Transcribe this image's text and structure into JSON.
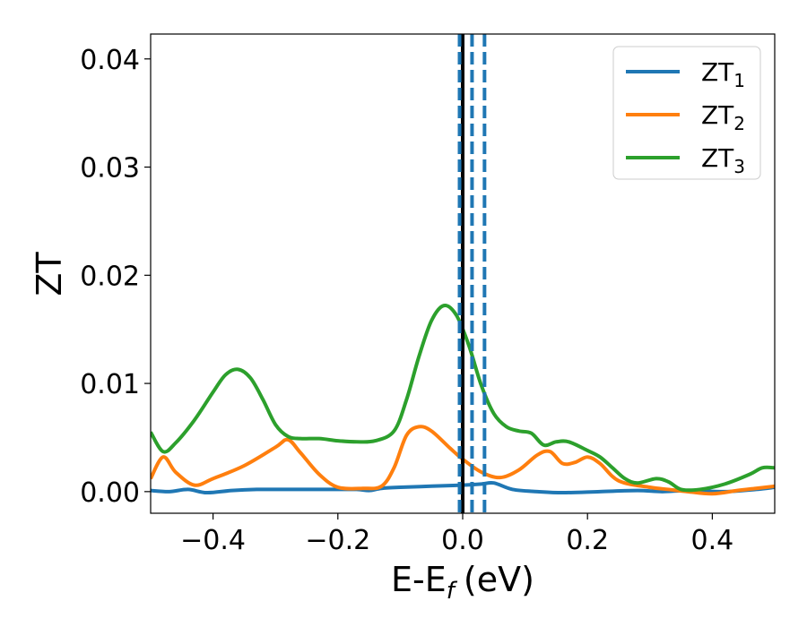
{
  "chart_data": {
    "type": "line",
    "xlabel": "E-E",
    "xlabel_sub": "f",
    "xlabel_unit": "(eV)",
    "ylabel": "ZT",
    "xlim": [
      -0.5,
      0.5
    ],
    "ylim": [
      -0.002,
      0.0423
    ],
    "xticks": [
      -0.4,
      -0.2,
      0.0,
      0.2,
      0.4
    ],
    "xtick_labels": [
      "−0.4",
      "−0.2",
      "0.0",
      "0.2",
      "0.4"
    ],
    "yticks": [
      0.0,
      0.01,
      0.02,
      0.03,
      0.04
    ],
    "ytick_labels": [
      "0.00",
      "0.01",
      "0.02",
      "0.03",
      "0.04"
    ],
    "grid": false,
    "legend_position": "top-right",
    "vertical_lines": [
      {
        "x": 0.0,
        "style": "solid",
        "color": "#000000"
      },
      {
        "x": -0.005,
        "style": "dashed",
        "color": "#1f77b4"
      },
      {
        "x": 0.015,
        "style": "dashed",
        "color": "#1f77b4"
      },
      {
        "x": 0.035,
        "style": "dashed",
        "color": "#1f77b4"
      }
    ],
    "series": [
      {
        "name": "ZT",
        "sub": "1",
        "color": "#1f77b4",
        "points": [
          [
            -0.5,
            0.0001
          ],
          [
            -0.47,
            0.0
          ],
          [
            -0.44,
            0.0002
          ],
          [
            -0.41,
            -0.0001
          ],
          [
            -0.37,
            0.0001
          ],
          [
            -0.33,
            0.0002
          ],
          [
            -0.29,
            0.0002
          ],
          [
            -0.25,
            0.0002
          ],
          [
            -0.21,
            0.0002
          ],
          [
            -0.17,
            0.0002
          ],
          [
            -0.15,
            0.0001
          ],
          [
            -0.13,
            0.0003
          ],
          [
            -0.1,
            0.0004
          ],
          [
            -0.05,
            0.0005
          ],
          [
            0.0,
            0.0006
          ],
          [
            0.03,
            0.0007
          ],
          [
            0.05,
            0.0008
          ],
          [
            0.08,
            0.0002
          ],
          [
            0.12,
            0.0
          ],
          [
            0.16,
            -0.0001
          ],
          [
            0.22,
            0.0
          ],
          [
            0.28,
            0.0001
          ],
          [
            0.32,
            0.0
          ],
          [
            0.36,
            0.0001
          ],
          [
            0.42,
            0.0
          ],
          [
            0.47,
            0.0002
          ],
          [
            0.5,
            0.0004
          ]
        ]
      },
      {
        "name": "ZT",
        "sub": "2",
        "color": "#ff7f0e",
        "points": [
          [
            -0.5,
            0.0012
          ],
          [
            -0.48,
            0.0032
          ],
          [
            -0.46,
            0.0018
          ],
          [
            -0.43,
            0.0006
          ],
          [
            -0.4,
            0.0012
          ],
          [
            -0.35,
            0.0024
          ],
          [
            -0.3,
            0.0041
          ],
          [
            -0.28,
            0.0048
          ],
          [
            -0.26,
            0.0036
          ],
          [
            -0.23,
            0.0016
          ],
          [
            -0.2,
            0.0004
          ],
          [
            -0.16,
            0.0003
          ],
          [
            -0.13,
            0.0005
          ],
          [
            -0.11,
            0.0022
          ],
          [
            -0.09,
            0.0052
          ],
          [
            -0.07,
            0.006
          ],
          [
            -0.05,
            0.0056
          ],
          [
            -0.02,
            0.004
          ],
          [
            0.0,
            0.003
          ],
          [
            0.03,
            0.0018
          ],
          [
            0.06,
            0.0013
          ],
          [
            0.09,
            0.002
          ],
          [
            0.12,
            0.0034
          ],
          [
            0.14,
            0.0037
          ],
          [
            0.16,
            0.0026
          ],
          [
            0.18,
            0.0027
          ],
          [
            0.2,
            0.0032
          ],
          [
            0.22,
            0.0026
          ],
          [
            0.25,
            0.001
          ],
          [
            0.3,
            0.0004
          ],
          [
            0.33,
            0.0002
          ],
          [
            0.36,
            0.0
          ],
          [
            0.4,
            -0.0002
          ],
          [
            0.44,
            0.0001
          ],
          [
            0.47,
            0.0003
          ],
          [
            0.5,
            0.0005
          ]
        ]
      },
      {
        "name": "ZT",
        "sub": "3",
        "color": "#2ca02c",
        "points": [
          [
            -0.5,
            0.0055
          ],
          [
            -0.48,
            0.0037
          ],
          [
            -0.46,
            0.0045
          ],
          [
            -0.43,
            0.0066
          ],
          [
            -0.4,
            0.0092
          ],
          [
            -0.38,
            0.0108
          ],
          [
            -0.36,
            0.0113
          ],
          [
            -0.34,
            0.0105
          ],
          [
            -0.32,
            0.0085
          ],
          [
            -0.3,
            0.0062
          ],
          [
            -0.28,
            0.0051
          ],
          [
            -0.26,
            0.0049
          ],
          [
            -0.23,
            0.0049
          ],
          [
            -0.2,
            0.0047
          ],
          [
            -0.17,
            0.0046
          ],
          [
            -0.14,
            0.0047
          ],
          [
            -0.11,
            0.0056
          ],
          [
            -0.09,
            0.0085
          ],
          [
            -0.07,
            0.0125
          ],
          [
            -0.05,
            0.0158
          ],
          [
            -0.03,
            0.0172
          ],
          [
            -0.01,
            0.0163
          ],
          [
            0.01,
            0.0135
          ],
          [
            0.03,
            0.0098
          ],
          [
            0.05,
            0.0072
          ],
          [
            0.07,
            0.006
          ],
          [
            0.09,
            0.0056
          ],
          [
            0.11,
            0.0054
          ],
          [
            0.13,
            0.0043
          ],
          [
            0.15,
            0.0046
          ],
          [
            0.17,
            0.0046
          ],
          [
            0.2,
            0.0038
          ],
          [
            0.22,
            0.0032
          ],
          [
            0.24,
            0.0022
          ],
          [
            0.26,
            0.0012
          ],
          [
            0.28,
            0.0008
          ],
          [
            0.31,
            0.0012
          ],
          [
            0.33,
            0.0009
          ],
          [
            0.35,
            0.0002
          ],
          [
            0.38,
            0.0002
          ],
          [
            0.42,
            0.0007
          ],
          [
            0.46,
            0.0016
          ],
          [
            0.48,
            0.0022
          ],
          [
            0.5,
            0.0022
          ]
        ]
      }
    ]
  }
}
